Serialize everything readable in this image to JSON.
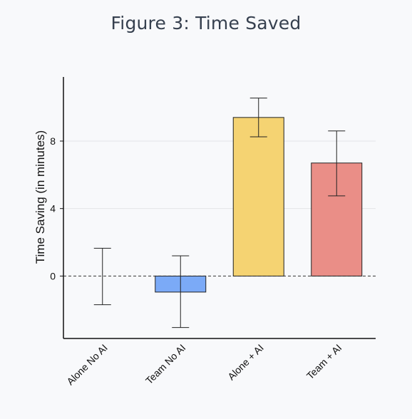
{
  "title": "Figure 3: Time Saved",
  "chart_data": {
    "type": "bar",
    "title": "Figure 3: Time Saved",
    "xlabel": "",
    "ylabel": "Time Saving (in minutes)",
    "ylim": [
      -3.7,
      11.8
    ],
    "yticks": [
      0,
      4,
      8
    ],
    "categories": [
      "Alone No AI",
      "Team No AI",
      "Alone + AI",
      "Team + AI"
    ],
    "values": [
      0.0,
      -0.95,
      9.4,
      6.7
    ],
    "error_low": [
      -1.7,
      -3.05,
      8.25,
      4.75
    ],
    "error_high": [
      1.65,
      1.2,
      10.55,
      8.6
    ],
    "colors": [
      "#7baaf7",
      "#7baaf7",
      "#f5d372",
      "#ea8e87"
    ],
    "grid": true,
    "zero_line": "dashed",
    "legend": "none"
  }
}
